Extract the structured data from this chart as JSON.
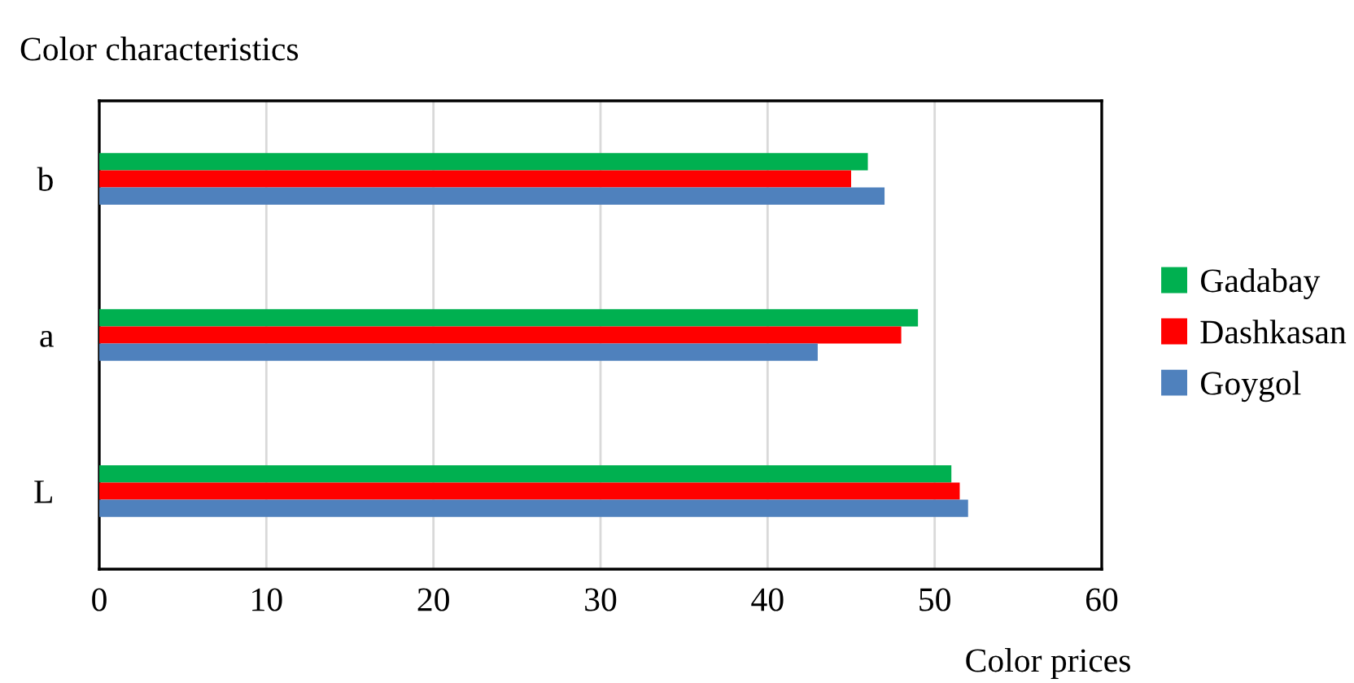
{
  "chart_data": {
    "type": "bar",
    "orientation": "horizontal",
    "ylabel": "Color characteristics",
    "xlabel": "Color prices",
    "categories": [
      "b",
      "a",
      "L"
    ],
    "series": [
      {
        "name": "Gadabay",
        "color": "#00b050",
        "values": [
          46,
          49,
          51
        ]
      },
      {
        "name": "Dashkasan",
        "color": "#ff0000",
        "values": [
          45,
          48,
          51.5
        ]
      },
      {
        "name": "Goygol",
        "color": "#4f81bd",
        "values": [
          47,
          43,
          52
        ]
      }
    ],
    "xlim": [
      0,
      60
    ],
    "xticks": [
      0,
      10,
      20,
      30,
      40,
      50,
      60
    ],
    "grid": "x",
    "legend": "right"
  }
}
